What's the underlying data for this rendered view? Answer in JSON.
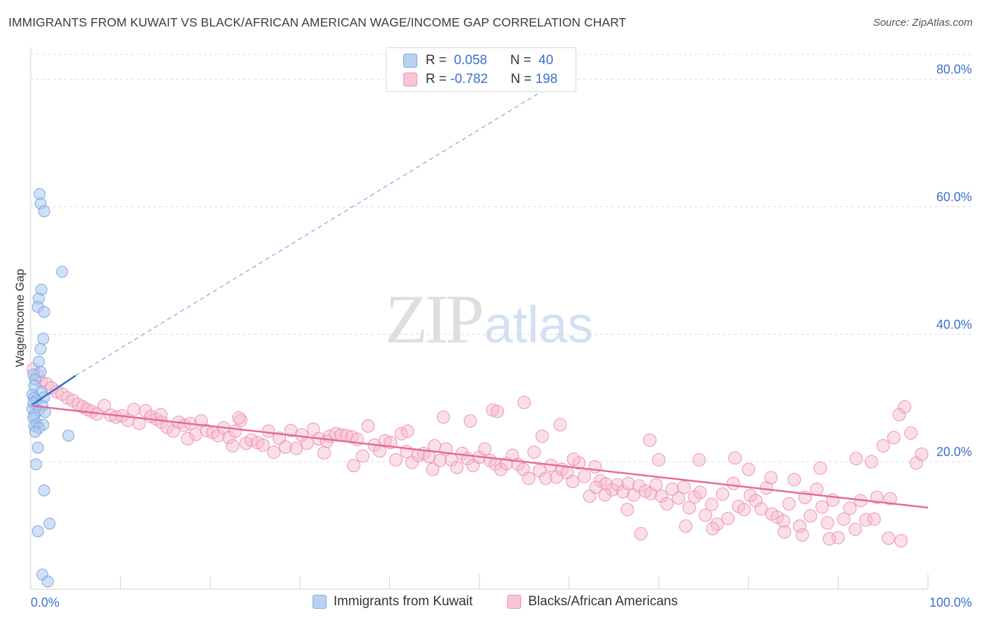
{
  "title": "IMMIGRANTS FROM KUWAIT VS BLACK/AFRICAN AMERICAN WAGE/INCOME GAP CORRELATION CHART",
  "source": "Source: ZipAtlas.com",
  "watermark": {
    "zip": "ZIP",
    "atlas": "atlas"
  },
  "legend": {
    "rows": [
      {
        "r_label": "R =",
        "r_value": "0.058",
        "n_label": "N =",
        "n_value": "40"
      },
      {
        "r_label": "R =",
        "r_value": "-0.782",
        "n_label": "N =",
        "n_value": "198"
      }
    ]
  },
  "colors": {
    "kuwait_fill": "#a9c8f0",
    "kuwait_stroke": "#7aa6e0",
    "kuwait_line": "#2e6fd1",
    "black_fill": "#f6b8cb",
    "black_stroke": "#ec93b0",
    "black_line": "#e56a96",
    "axis_text": "#3a6fd0",
    "grid": "#dcdcdc"
  },
  "chart_data": {
    "type": "scatter",
    "title": "IMMIGRANTS FROM KUWAIT VS BLACK/AFRICAN AMERICAN WAGE/INCOME GAP CORRELATION CHART",
    "xlabel": "",
    "ylabel": "Wage/Income Gap",
    "xlim": [
      0,
      100
    ],
    "ylim": [
      0,
      85
    ],
    "x_tick_labels": [
      "0.0%",
      "100.0%"
    ],
    "y_ticks": [
      20,
      40,
      60,
      80
    ],
    "y_tick_labels": [
      "20.0%",
      "40.0%",
      "60.0%",
      "80.0%"
    ],
    "grid": true,
    "legend_position": "top-center",
    "series": [
      {
        "name": "Immigrants from Kuwait",
        "R": 0.058,
        "N": 40,
        "trend": {
          "x": [
            0.2,
            5
          ],
          "y": [
            29.0,
            33.5
          ],
          "extended_x": [
            5,
            58
          ],
          "extended_y": [
            33.5,
            79
          ]
        },
        "points": [
          [
            1.0,
            62.0
          ],
          [
            1.1,
            60.5
          ],
          [
            1.5,
            59.3
          ],
          [
            3.5,
            49.8
          ],
          [
            1.2,
            47.0
          ],
          [
            0.9,
            45.6
          ],
          [
            0.8,
            44.3
          ],
          [
            1.5,
            43.5
          ],
          [
            1.4,
            39.3
          ],
          [
            1.1,
            37.7
          ],
          [
            0.9,
            35.7
          ],
          [
            1.1,
            34.1
          ],
          [
            0.3,
            33.7
          ],
          [
            0.5,
            32.9
          ],
          [
            0.4,
            31.9
          ],
          [
            1.2,
            31.0
          ],
          [
            0.2,
            30.5
          ],
          [
            0.4,
            30.0
          ],
          [
            1.5,
            30.1
          ],
          [
            0.6,
            29.6
          ],
          [
            0.3,
            29.2
          ],
          [
            1.3,
            28.8
          ],
          [
            0.2,
            28.3
          ],
          [
            0.9,
            28.0
          ],
          [
            1.6,
            27.8
          ],
          [
            0.4,
            27.3
          ],
          [
            0.3,
            26.9
          ],
          [
            0.7,
            26.0
          ],
          [
            1.4,
            25.8
          ],
          [
            0.4,
            25.6
          ],
          [
            0.9,
            25.3
          ],
          [
            0.5,
            24.7
          ],
          [
            4.2,
            24.1
          ],
          [
            0.8,
            22.2
          ],
          [
            0.6,
            19.6
          ],
          [
            1.5,
            15.5
          ],
          [
            2.1,
            10.3
          ],
          [
            0.8,
            9.1
          ],
          [
            1.3,
            2.3
          ],
          [
            1.9,
            1.2
          ]
        ]
      },
      {
        "name": "Blacks/African Americans",
        "R": -0.782,
        "N": 198,
        "trend": {
          "x": [
            0,
            100
          ],
          "y": [
            28.8,
            12.8
          ]
        },
        "points": [
          [
            0.3,
            34.5
          ],
          [
            0.8,
            33.6
          ],
          [
            1.2,
            32.5
          ],
          [
            1.8,
            32.2
          ],
          [
            2.3,
            31.6
          ],
          [
            2.9,
            31.0
          ],
          [
            3.5,
            30.6
          ],
          [
            4.1,
            30.0
          ],
          [
            4.7,
            29.6
          ],
          [
            5.3,
            29.0
          ],
          [
            5.8,
            28.6
          ],
          [
            6.3,
            28.2
          ],
          [
            6.8,
            27.9
          ],
          [
            7.4,
            27.5
          ],
          [
            8.2,
            28.8
          ],
          [
            8.9,
            27.3
          ],
          [
            9.5,
            27.0
          ],
          [
            10.2,
            27.2
          ],
          [
            10.8,
            26.5
          ],
          [
            11.5,
            28.2
          ],
          [
            12.1,
            26.0
          ],
          [
            12.8,
            28.0
          ],
          [
            13.4,
            27.1
          ],
          [
            14.0,
            26.7
          ],
          [
            14.6,
            26.2
          ],
          [
            15.2,
            25.4
          ],
          [
            15.9,
            24.8
          ],
          [
            16.5,
            26.2
          ],
          [
            17.1,
            25.7
          ],
          [
            17.8,
            26.0
          ],
          [
            18.4,
            24.3
          ],
          [
            19.0,
            26.4
          ],
          [
            19.6,
            24.9
          ],
          [
            20.3,
            24.6
          ],
          [
            20.9,
            24.1
          ],
          [
            21.5,
            25.3
          ],
          [
            22.1,
            23.8
          ],
          [
            22.8,
            24.8
          ],
          [
            23.4,
            26.5
          ],
          [
            24.0,
            22.9
          ],
          [
            24.6,
            23.4
          ],
          [
            25.3,
            23.0
          ],
          [
            25.9,
            22.6
          ],
          [
            26.5,
            24.8
          ],
          [
            27.1,
            21.5
          ],
          [
            27.7,
            23.7
          ],
          [
            28.4,
            22.3
          ],
          [
            29.0,
            24.9
          ],
          [
            29.6,
            22.1
          ],
          [
            30.2,
            24.2
          ],
          [
            30.8,
            22.9
          ],
          [
            31.5,
            25.1
          ],
          [
            32.1,
            23.6
          ],
          [
            32.7,
            21.4
          ],
          [
            33.3,
            24.0
          ],
          [
            34.0,
            24.4
          ],
          [
            34.6,
            24.2
          ],
          [
            35.2,
            24.1
          ],
          [
            35.8,
            23.9
          ],
          [
            36.4,
            23.5
          ],
          [
            37.0,
            20.9
          ],
          [
            37.6,
            25.6
          ],
          [
            38.3,
            22.6
          ],
          [
            38.9,
            21.7
          ],
          [
            39.5,
            23.3
          ],
          [
            40.1,
            23.0
          ],
          [
            40.7,
            20.3
          ],
          [
            41.3,
            24.4
          ],
          [
            41.9,
            21.6
          ],
          [
            42.5,
            19.9
          ],
          [
            43.2,
            21.0
          ],
          [
            43.8,
            21.3
          ],
          [
            44.4,
            20.8
          ],
          [
            45.0,
            22.5
          ],
          [
            45.6,
            20.2
          ],
          [
            46.3,
            22.0
          ],
          [
            46.9,
            20.3
          ],
          [
            47.5,
            19.1
          ],
          [
            48.1,
            21.3
          ],
          [
            48.7,
            20.5
          ],
          [
            49.3,
            19.4
          ],
          [
            50.0,
            20.7
          ],
          [
            50.6,
            22.0
          ],
          [
            51.2,
            20.2
          ],
          [
            51.8,
            19.6
          ],
          [
            52.4,
            18.8
          ],
          [
            53.0,
            19.7
          ],
          [
            53.7,
            21.0
          ],
          [
            54.3,
            19.6
          ],
          [
            54.9,
            18.8
          ],
          [
            55.5,
            17.4
          ],
          [
            56.1,
            21.5
          ],
          [
            56.7,
            18.6
          ],
          [
            57.4,
            17.4
          ],
          [
            58.0,
            19.4
          ],
          [
            58.6,
            17.6
          ],
          [
            59.2,
            18.8
          ],
          [
            59.8,
            18.3
          ],
          [
            60.4,
            16.9
          ],
          [
            61.1,
            19.8
          ],
          [
            61.7,
            17.7
          ],
          [
            62.3,
            14.6
          ],
          [
            62.9,
            19.2
          ],
          [
            63.5,
            17.0
          ],
          [
            64.1,
            16.5
          ],
          [
            64.8,
            15.6
          ],
          [
            65.4,
            16.4
          ],
          [
            66.0,
            15.3
          ],
          [
            66.6,
            16.6
          ],
          [
            67.2,
            14.8
          ],
          [
            67.8,
            16.2
          ],
          [
            68.5,
            15.4
          ],
          [
            69.1,
            15.0
          ],
          [
            69.7,
            16.4
          ],
          [
            70.3,
            14.6
          ],
          [
            70.9,
            13.4
          ],
          [
            71.5,
            15.7
          ],
          [
            72.2,
            14.3
          ],
          [
            72.8,
            16.0
          ],
          [
            73.4,
            12.8
          ],
          [
            74.0,
            14.5
          ],
          [
            74.6,
            15.2
          ],
          [
            75.2,
            11.6
          ],
          [
            75.9,
            13.3
          ],
          [
            76.5,
            10.2
          ],
          [
            77.1,
            14.9
          ],
          [
            77.7,
            11.1
          ],
          [
            78.3,
            16.6
          ],
          [
            78.9,
            13.0
          ],
          [
            79.5,
            12.5
          ],
          [
            80.2,
            14.7
          ],
          [
            80.8,
            13.9
          ],
          [
            81.4,
            12.6
          ],
          [
            82.0,
            15.9
          ],
          [
            82.6,
            11.8
          ],
          [
            83.2,
            11.3
          ],
          [
            83.9,
            10.7
          ],
          [
            84.5,
            13.4
          ],
          [
            85.1,
            17.2
          ],
          [
            85.7,
            9.9
          ],
          [
            86.3,
            14.4
          ],
          [
            86.9,
            11.5
          ],
          [
            87.6,
            15.7
          ],
          [
            88.2,
            12.9
          ],
          [
            88.8,
            10.4
          ],
          [
            89.4,
            14.0
          ],
          [
            90.0,
            8.1
          ],
          [
            90.6,
            11.0
          ],
          [
            91.3,
            12.7
          ],
          [
            91.9,
            9.4
          ],
          [
            92.5,
            13.9
          ],
          [
            93.1,
            10.9
          ],
          [
            93.7,
            20.0
          ],
          [
            94.3,
            14.4
          ],
          [
            95.0,
            22.5
          ],
          [
            95.6,
            8.0
          ],
          [
            96.2,
            23.8
          ],
          [
            96.8,
            27.4
          ],
          [
            97.4,
            28.6
          ],
          [
            98.1,
            24.5
          ],
          [
            98.7,
            19.8
          ],
          [
            99.3,
            21.2
          ],
          [
            17.5,
            23.6
          ],
          [
            23.2,
            26.9
          ],
          [
            33.0,
            23.2
          ],
          [
            44.8,
            18.8
          ],
          [
            51.5,
            28.1
          ],
          [
            55.0,
            29.3
          ],
          [
            57.0,
            24.0
          ],
          [
            59.0,
            25.8
          ],
          [
            64.0,
            14.8
          ],
          [
            68.0,
            8.7
          ],
          [
            69.0,
            23.4
          ],
          [
            73.0,
            9.9
          ],
          [
            76.0,
            9.5
          ],
          [
            80.0,
            18.8
          ],
          [
            84.0,
            9.0
          ],
          [
            86.0,
            8.5
          ],
          [
            88.0,
            19.0
          ],
          [
            89.0,
            7.9
          ],
          [
            92.0,
            20.5
          ],
          [
            95.8,
            14.2
          ],
          [
            97.0,
            7.6
          ],
          [
            14.5,
            27.4
          ],
          [
            22.5,
            22.5
          ],
          [
            36.0,
            19.4
          ],
          [
            42.0,
            24.8
          ],
          [
            46.0,
            27.0
          ],
          [
            49.0,
            26.4
          ],
          [
            52.0,
            27.9
          ],
          [
            60.5,
            20.4
          ],
          [
            63.0,
            16.0
          ],
          [
            66.5,
            12.5
          ],
          [
            70.0,
            20.3
          ],
          [
            74.5,
            20.3
          ],
          [
            78.5,
            20.6
          ],
          [
            82.5,
            17.5
          ],
          [
            94.0,
            11.0
          ]
        ]
      }
    ]
  },
  "bottom_legend": [
    "Immigrants from Kuwait",
    "Blacks/African Americans"
  ]
}
